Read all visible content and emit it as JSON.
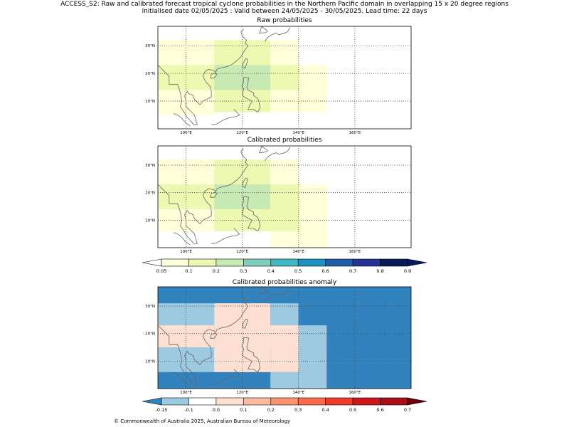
{
  "header": {
    "line1": "ACCESS_S2: Raw and calibrated forecast tropical cyclone probabilities in the Northern Pacific domain in overlapping 15 x 20 degree regions",
    "line2": "initialised date 02/05/2025 :  Valid between 24/05/2025 - 30/05/2025. Lead time: 22 days"
  },
  "chart_data": [
    {
      "type": "heatmap",
      "title": "Raw probabilities",
      "xlim": [
        90,
        180
      ],
      "ylim": [
        0,
        37
      ],
      "xticks": [
        100,
        120,
        140,
        160
      ],
      "xtick_labels": [
        "100°E",
        "120°E",
        "140°E",
        "160°E"
      ],
      "yticks": [
        10,
        20,
        30
      ],
      "ytick_labels": [
        "10°N",
        "20°N",
        "30°N"
      ],
      "cells": [
        {
          "lon": [
            90,
            110
          ],
          "lat": [
            5,
            32
          ],
          "value": 0.07
        },
        {
          "lon": [
            110,
            130
          ],
          "lat": [
            6,
            32
          ],
          "value": 0.12
        },
        {
          "lon": [
            130,
            140
          ],
          "lat": [
            6,
            32
          ],
          "value": 0.07
        },
        {
          "lon": [
            90,
            110
          ],
          "lat": [
            14,
            23
          ],
          "value": 0.12
        },
        {
          "lon": [
            130,
            140
          ],
          "lat": [
            14,
            23
          ],
          "value": 0.12
        },
        {
          "lon": [
            140,
            150
          ],
          "lat": [
            6,
            23
          ],
          "value": 0.07
        },
        {
          "lon": [
            110,
            130
          ],
          "lat": [
            14,
            23
          ],
          "value": 0.22
        }
      ]
    },
    {
      "type": "heatmap",
      "title": "Calibrated probabilities",
      "xlim": [
        90,
        180
      ],
      "ylim": [
        0,
        37
      ],
      "xticks": [
        100,
        120,
        140,
        160
      ],
      "xtick_labels": [
        "100°E",
        "120°E",
        "140°E",
        "160°E"
      ],
      "yticks": [
        10,
        20,
        30
      ],
      "ytick_labels": [
        "10°N",
        "20°N",
        "30°N"
      ],
      "cells": [
        {
          "lon": [
            90,
            110
          ],
          "lat": [
            6,
            32
          ],
          "value": 0.07
        },
        {
          "lon": [
            110,
            130
          ],
          "lat": [
            6,
            32
          ],
          "value": 0.12
        },
        {
          "lon": [
            130,
            140
          ],
          "lat": [
            0,
            32
          ],
          "value": 0.07
        },
        {
          "lon": [
            140,
            150
          ],
          "lat": [
            0,
            23
          ],
          "value": 0.07
        },
        {
          "lon": [
            90,
            110
          ],
          "lat": [
            14,
            23
          ],
          "value": 0.12
        },
        {
          "lon": [
            130,
            140
          ],
          "lat": [
            6,
            23
          ],
          "value": 0.12
        },
        {
          "lon": [
            110,
            130
          ],
          "lat": [
            14,
            23
          ],
          "value": 0.22
        }
      ]
    },
    {
      "type": "heatmap",
      "title": "Calibrated probabilities anomaly",
      "xlim": [
        90,
        180
      ],
      "ylim": [
        0,
        37
      ],
      "xticks": [
        100,
        120,
        140,
        160
      ],
      "xtick_labels": [
        "100°E",
        "120°E",
        "140°E",
        "160°E"
      ],
      "yticks": [
        10,
        20,
        30
      ],
      "ytick_labels": [
        "10°N",
        "20°N",
        "30°N"
      ],
      "background_value": -0.17,
      "cells": [
        {
          "lon": [
            90,
            110
          ],
          "lat": [
            15,
            31
          ],
          "value": -0.12
        },
        {
          "lon": [
            130,
            140
          ],
          "lat": [
            15,
            31
          ],
          "value": -0.12
        },
        {
          "lon": [
            90,
            110
          ],
          "lat": [
            6,
            15
          ],
          "value": -0.12
        },
        {
          "lon": [
            110,
            130
          ],
          "lat": [
            6,
            15
          ],
          "value": -0.12
        },
        {
          "lon": [
            140,
            150
          ],
          "lat": [
            0,
            23
          ],
          "value": -0.12
        },
        {
          "lon": [
            130,
            140
          ],
          "lat": [
            0,
            6
          ],
          "value": -0.12
        },
        {
          "lon": [
            110,
            130
          ],
          "lat": [
            15,
            31
          ],
          "value": 0.0
        },
        {
          "lon": [
            90,
            110
          ],
          "lat": [
            15,
            23
          ],
          "value": 0.0
        },
        {
          "lon": [
            130,
            140
          ],
          "lat": [
            6,
            23
          ],
          "value": 0.0
        },
        {
          "lon": [
            110,
            130
          ],
          "lat": [
            6,
            15
          ],
          "value": 0.0
        },
        {
          "lon": [
            115,
            130
          ],
          "lat": [
            15,
            23
          ],
          "value": 0.07
        }
      ]
    }
  ],
  "colorbar_prob": {
    "tick_labels": [
      "0.05",
      "0.1",
      "0.2",
      "0.3",
      "0.4",
      "0.5",
      "0.6",
      "0.7",
      "0.8",
      "0.9"
    ],
    "colors": [
      "#ffffd9",
      "#edf8b1",
      "#c7e9b4",
      "#7fcdbb",
      "#41b6c4",
      "#1d91c0",
      "#225ea8",
      "#253494",
      "#081d58"
    ],
    "under_color": "#ffffff",
    "over_color": "#081d58"
  },
  "colorbar_anom": {
    "tick_labels": [
      "-0.15",
      "-0.1",
      "0.0",
      "0.1",
      "0.2",
      "0.3",
      "0.4",
      "0.5",
      "0.6",
      "0.7"
    ],
    "colors": [
      "#9ecae1",
      "#ffffff",
      "#fee0d2",
      "#fcbba1",
      "#fc9272",
      "#fb6a4a",
      "#ef3b2c",
      "#cb181d",
      "#a50f15"
    ],
    "under_color": "#3182bd",
    "over_color": "#67000d"
  },
  "footer": {
    "copyright": "© Commonwealth of Australia 2025, Australian Bureau of Meteorology"
  }
}
